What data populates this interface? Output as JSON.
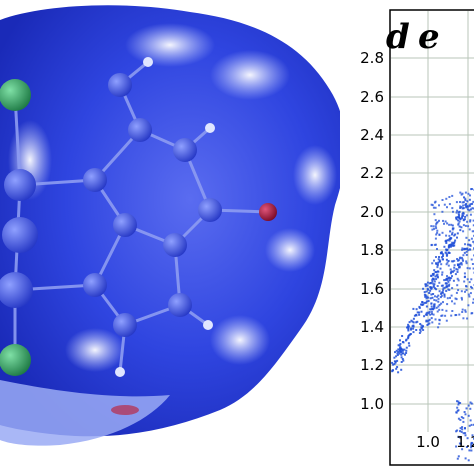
{
  "fingerprint_plot": {
    "y_ticks": [
      "2.8",
      "2.6",
      "2.4",
      "2.2",
      "2.0",
      "1.8",
      "1.6",
      "1.4",
      "1.2",
      "1.0"
    ],
    "x_ticks": [
      "1.0",
      "1.2"
    ],
    "corner_label_left": "d",
    "corner_label_right": "e",
    "point_color": "#1f4fd8"
  },
  "hirshfeld_surface": {
    "surface_color": "#2f45e0",
    "highlight_color": "#c9d2ff",
    "red_spot_color": "#c2182b",
    "atom_colors": {
      "carbon": "#3a4fd8",
      "hydrogen": "#e0e6ff",
      "chlorine": "#2e9a5a",
      "oxygen": "#b0103a"
    }
  }
}
